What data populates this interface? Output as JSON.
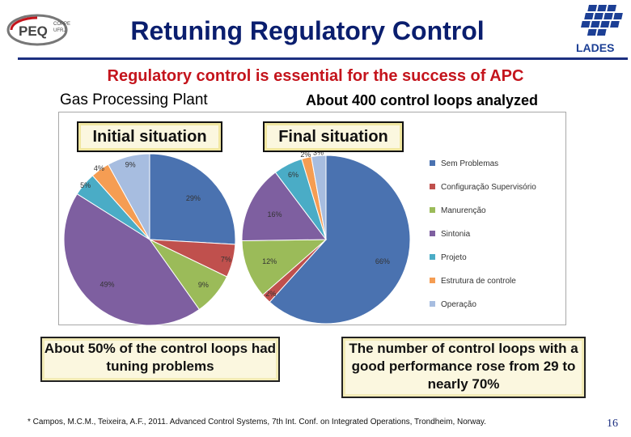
{
  "slide": {
    "title": "Retuning Regulatory Control",
    "subtitle": "Regulatory control is essential for the success of APC",
    "left_label": "Gas Processing Plant",
    "right_label": "About 400 control loops analyzed",
    "footnote": "* Campos, M.C.M., Teixeira, A.F., 2011. Advanced Control Systems, 7th Int. Conf. on Integrated Operations, Trondheim, Norway.",
    "page_number": "16",
    "logo_left": {
      "text": "PEQ",
      "small_top": "COPPE",
      "small_bottom": "UFRJ"
    },
    "logo_right": {
      "text": "LADES"
    },
    "callouts": {
      "left": "About 50% of the control loops had tuning problems",
      "right": "The number of control loops with a good performance rose from 29 to nearly 70%"
    },
    "colors": {
      "title": "#0a1e6e",
      "subtitle": "#c4141c",
      "rule": "#1c2f80"
    }
  },
  "chart_data": [
    {
      "type": "pie",
      "title": "Initial situation",
      "labels": [
        "Sem Problemas",
        "Configuração Supervisório",
        "Manurenção",
        "Sintonia",
        "Projeto",
        "Estrutura de controle",
        "Operação"
      ],
      "values": [
        29,
        7,
        9,
        49,
        5,
        4,
        9
      ],
      "value_labels": [
        "29%",
        "7%",
        "9%",
        "49%",
        "5%",
        "4%",
        "9%"
      ],
      "colors": [
        "#4a72b0",
        "#c0504d",
        "#9bbb59",
        "#7e5fa0",
        "#4aacc6",
        "#f59d53",
        "#a7bde0"
      ],
      "legend_position": "right"
    },
    {
      "type": "pie",
      "title": "Final situation",
      "labels": [
        "Sem Problemas",
        "Configuração Supervisório",
        "Manurenção",
        "Sintonia",
        "Projeto",
        "Estrutura de controle",
        "Operação"
      ],
      "values": [
        66,
        2,
        12,
        16,
        6,
        2,
        3
      ],
      "value_labels": [
        "66%",
        "2%",
        "12%",
        "16%",
        "6%",
        "2%",
        "3%"
      ],
      "colors": [
        "#4a72b0",
        "#c0504d",
        "#9bbb59",
        "#7e5fa0",
        "#4aacc6",
        "#f59d53",
        "#a7bde0"
      ],
      "legend_position": "right"
    }
  ]
}
